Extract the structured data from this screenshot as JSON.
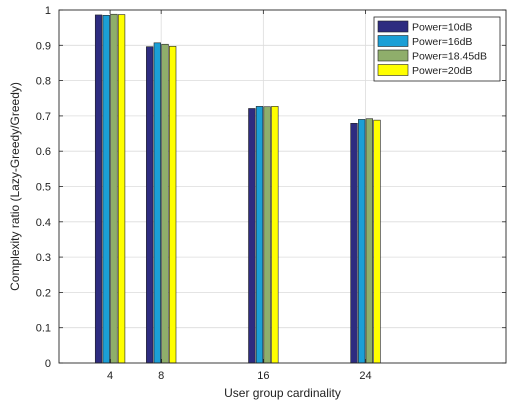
{
  "chart_data": {
    "type": "bar",
    "title": "",
    "xlabel": "User group cardinality",
    "ylabel": "Complexity ratio (Lazy-Greedy/Greedy)",
    "x": [
      4,
      8,
      16,
      24
    ],
    "xlim": [
      0,
      35
    ],
    "ylim": [
      0,
      1
    ],
    "yticks": [
      "0",
      "0.1",
      "0.2",
      "0.3",
      "0.4",
      "0.5",
      "0.6",
      "0.7",
      "0.8",
      "0.9",
      "1"
    ],
    "xticks": [
      "4",
      "8",
      "16",
      "24"
    ],
    "grid": true,
    "legend_position": "top-right",
    "series": [
      {
        "name": "Power=10dB",
        "color": "#2e2c80",
        "values": [
          0.986,
          0.896,
          0.721,
          0.679
        ]
      },
      {
        "name": "Power=16dB",
        "color": "#1b9fd6",
        "values": [
          0.985,
          0.907,
          0.727,
          0.69
        ]
      },
      {
        "name": "Power=18.45dB",
        "color": "#8fae6b",
        "values": [
          0.988,
          0.903,
          0.726,
          0.692
        ]
      },
      {
        "name": "Power=20dB",
        "color": "#ffff00",
        "values": [
          0.987,
          0.897,
          0.727,
          0.688
        ]
      }
    ]
  }
}
